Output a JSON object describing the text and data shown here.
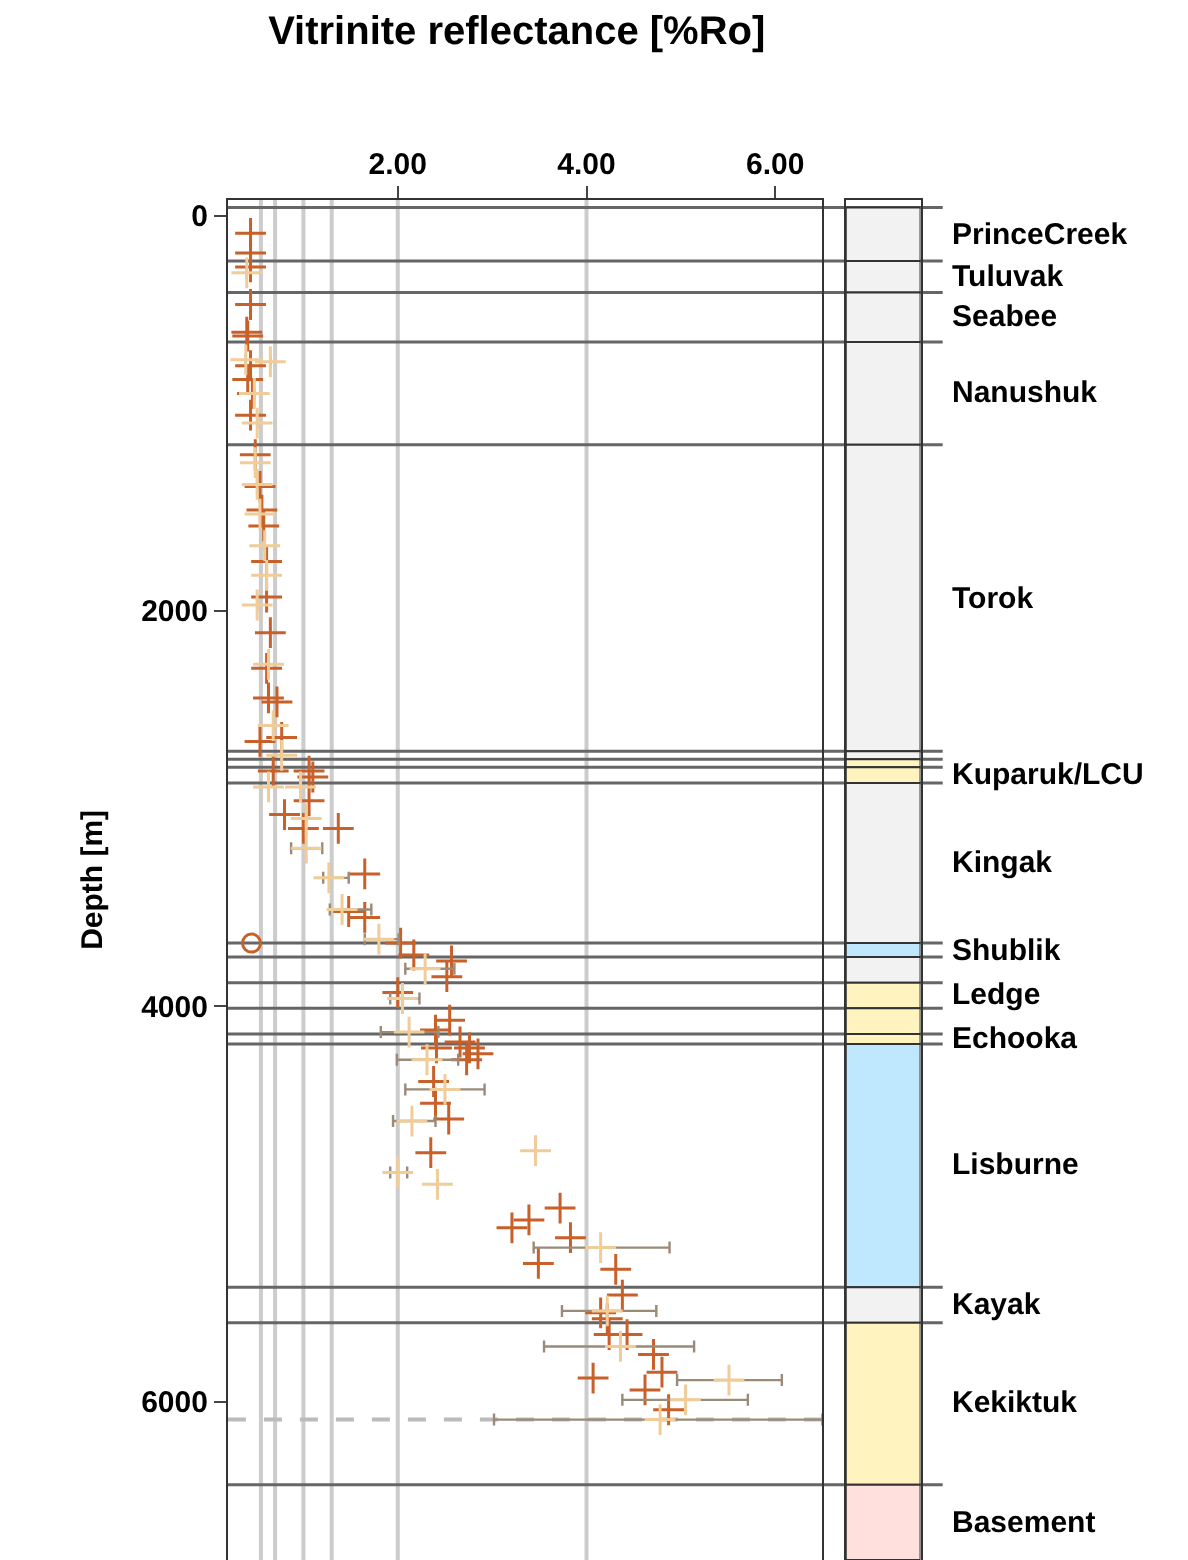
{
  "chart_data": [
    {
      "type": "scatter",
      "title": "Vitrinite reflectance [%Ro]",
      "ylabel": "Depth [m]",
      "xlim": [
        0.2,
        6.5
      ],
      "xticks": [
        {
          "value": 2,
          "label": "2.00"
        },
        {
          "value": 4,
          "label": "4.00"
        },
        {
          "value": 6,
          "label": "6.00"
        }
      ],
      "ylim": [
        6800,
        -80
      ],
      "yticks": [
        0,
        2000,
        4000,
        6000
      ],
      "grid": false,
      "legend": false,
      "marker": "cross",
      "series": [
        {
          "color": "#c8602a",
          "x": [
            0.44,
            0.44,
            0.44,
            0.44,
            0.4,
            0.41,
            0.44,
            0.41,
            0.46,
            0.44,
            0.49,
            0.54,
            0.56,
            0.58,
            0.61,
            0.61,
            0.65,
            0.61,
            0.63,
            0.72,
            0.54,
            0.77,
            0.68,
            1.06,
            1.1,
            1.06,
            0.8,
            1.0,
            1.37,
            1.65,
            1.48,
            1.65,
            2.03,
            2.17,
            2.57,
            2.52,
            2.0,
            2.55,
            2.4,
            2.66,
            2.76,
            2.41,
            2.73,
            2.85,
            2.38,
            2.4,
            2.54,
            2.35,
            3.72,
            3.39,
            3.21,
            3.83,
            3.49,
            4.31,
            4.38,
            4.15,
            4.22,
            4.24,
            4.43,
            4.71,
            4.8,
            4.07,
            4.62,
            4.87
          ],
          "values": [
            90,
            190,
            260,
            450,
            590,
            610,
            760,
            830,
            900,
            1010,
            1210,
            1370,
            1490,
            1570,
            1750,
            1930,
            2110,
            2290,
            2440,
            2460,
            2660,
            2640,
            2810,
            2810,
            2840,
            2960,
            3030,
            3100,
            3100,
            3330,
            3520,
            3550,
            3680,
            3740,
            3770,
            3850,
            3930,
            4070,
            4120,
            4180,
            4210,
            4210,
            4270,
            4240,
            4380,
            4490,
            4570,
            4740,
            5020,
            5080,
            5120,
            5170,
            5300,
            5330,
            5460,
            5550,
            5580,
            5660,
            5660,
            5760,
            5850,
            5880,
            5940,
            6040
          ]
        },
        {
          "color": "#f0cc98",
          "x": [
            0.4,
            0.39,
            0.65,
            0.48,
            0.51,
            0.49,
            0.51,
            0.54,
            0.59,
            0.61,
            0.51,
            0.63,
            0.68,
            0.77,
            0.63,
            0.97,
            1.03,
            1.03,
            1.27,
            1.41,
            1.8,
            2.29,
            2.05,
            2.12,
            2.31,
            2.5,
            2.15,
            3.46,
            2.0,
            2.42,
            4.15,
            4.22,
            4.36,
            5.51,
            5.05,
            4.78
          ],
          "values": [
            290,
            730,
            740,
            900,
            1050,
            1250,
            1360,
            1510,
            1670,
            1820,
            1970,
            2270,
            2580,
            2730,
            2890,
            2890,
            3050,
            3200,
            3350,
            3510,
            3660,
            3810,
            3960,
            4130,
            4270,
            4420,
            4580,
            4730,
            4840,
            4900,
            5220,
            5540,
            5720,
            5890,
            5990,
            6090
          ],
          "xerrors": [
            null,
            null,
            null,
            null,
            null,
            null,
            null,
            null,
            null,
            null,
            null,
            null,
            null,
            null,
            null,
            null,
            null,
            [
              0.87,
              1.2
            ],
            [
              1.21,
              1.48
            ],
            [
              1.28,
              1.72
            ],
            [
              1.65,
              2.01
            ],
            [
              2.08,
              2.6
            ],
            [
              1.92,
              2.23
            ],
            [
              1.82,
              2.43
            ],
            [
              1.99,
              2.64
            ],
            [
              2.08,
              2.92
            ],
            [
              1.95,
              2.4
            ],
            null,
            [
              1.92,
              2.1
            ],
            null,
            [
              3.44,
              4.88
            ],
            [
              3.74,
              4.74
            ],
            [
              3.55,
              5.14
            ],
            [
              4.96,
              6.07
            ],
            [
              4.38,
              5.71
            ],
            [
              3.02,
              6.5
            ]
          ]
        },
        {
          "color": "#c8602a",
          "marker": "circle",
          "x": [
            0.45
          ],
          "values": [
            3680
          ]
        }
      ],
      "ref_lines": [
        {
          "axis": "x",
          "value": 0.55,
          "color": "#cccccc"
        },
        {
          "axis": "x",
          "value": 0.7,
          "color": "#cccccc"
        },
        {
          "axis": "x",
          "value": 1.0,
          "color": "#cccccc"
        },
        {
          "axis": "x",
          "value": 1.3,
          "color": "#cccccc"
        },
        {
          "axis": "x",
          "value": 2.0,
          "color": "#cccccc"
        },
        {
          "axis": "x",
          "value": 4.0,
          "color": "#cccccc"
        },
        {
          "axis": "y",
          "value": 6090,
          "color": "#bbbbbb",
          "line_style": "dashed"
        },
        {
          "axis": "y",
          "value": -40,
          "color": "#666666"
        },
        {
          "axis": "y",
          "value": 230,
          "color": "#666666"
        },
        {
          "axis": "y",
          "value": 390,
          "color": "#666666"
        },
        {
          "axis": "y",
          "value": 640,
          "color": "#666666"
        },
        {
          "axis": "y",
          "value": 1160,
          "color": "#666666"
        },
        {
          "axis": "y",
          "value": 2710,
          "color": "#666666"
        },
        {
          "axis": "y",
          "value": 2750,
          "color": "#666666"
        },
        {
          "axis": "y",
          "value": 2790,
          "color": "#666666"
        },
        {
          "axis": "y",
          "value": 2870,
          "color": "#666666"
        },
        {
          "axis": "y",
          "value": 3680,
          "color": "#666666"
        },
        {
          "axis": "y",
          "value": 3750,
          "color": "#666666"
        },
        {
          "axis": "y",
          "value": 3880,
          "color": "#666666"
        },
        {
          "axis": "y",
          "value": 4010,
          "color": "#666666"
        },
        {
          "axis": "y",
          "value": 4140,
          "color": "#666666"
        },
        {
          "axis": "y",
          "value": 4190,
          "color": "#666666"
        },
        {
          "axis": "y",
          "value": 5420,
          "color": "#666666"
        },
        {
          "axis": "y",
          "value": 5600,
          "color": "#666666"
        },
        {
          "axis": "y",
          "value": 6420,
          "color": "#666666"
        }
      ]
    },
    {
      "type": "bar",
      "categories": [
        null
      ],
      "ylim": [
        6800,
        -80
      ],
      "yticks": [
        0,
        2000,
        4000,
        6000
      ],
      "tick_labels": false,
      "legend": false,
      "series": [
        {
          "name": "PrinceCreek",
          "color": "#f2f2f2",
          "values": [
            270
          ],
          "base": [
            -40
          ]
        },
        {
          "name": "Tuluvak",
          "color": "#f2f2f2",
          "values": [
            160
          ],
          "base": [
            230
          ]
        },
        {
          "name": "Seabee",
          "color": "#f2f2f2",
          "values": [
            250
          ],
          "base": [
            390
          ]
        },
        {
          "name": "Nanushuk",
          "color": "#f2f2f2",
          "values": [
            520
          ],
          "base": [
            640
          ]
        },
        {
          "name": "Torok",
          "color": "#f2f2f2",
          "values": [
            1550
          ],
          "base": [
            1160
          ]
        },
        {
          "color": "#f2f2f2",
          "values": [
            40
          ],
          "base": [
            2710
          ]
        },
        {
          "color": "#fff4c0",
          "values": [
            40
          ],
          "base": [
            2750
          ]
        },
        {
          "name": "Kuparuk/LCU",
          "color": "#fff4c0",
          "values": [
            80
          ],
          "base": [
            2790
          ]
        },
        {
          "name": "Kingak",
          "color": "#f2f2f2",
          "values": [
            810
          ],
          "base": [
            2870
          ]
        },
        {
          "name": "Shublik",
          "color": "#bfe8ff",
          "values": [
            70
          ],
          "base": [
            3680
          ]
        },
        {
          "color": "#f2f2f2",
          "values": [
            130
          ],
          "base": [
            3750
          ]
        },
        {
          "name": "Ledge",
          "color": "#fff4c0",
          "values": [
            130
          ],
          "base": [
            3880
          ]
        },
        {
          "color": "#fff4c0",
          "values": [
            130
          ],
          "base": [
            4010
          ]
        },
        {
          "name": "Echooka",
          "color": "#fff4c0",
          "values": [
            50
          ],
          "base": [
            4140
          ]
        },
        {
          "name": "Lisburne",
          "color": "#bfe8ff",
          "values": [
            1230
          ],
          "base": [
            4190
          ]
        },
        {
          "name": "Kayak",
          "color": "#f2f2f2",
          "values": [
            180
          ],
          "base": [
            5420
          ]
        },
        {
          "name": "Kekiktuk",
          "color": "#fff4c0",
          "values": [
            820
          ],
          "base": [
            5600
          ]
        },
        {
          "name": "Basement",
          "color": "#ffe0dc",
          "values": [
            380
          ],
          "base": [
            6420
          ]
        }
      ]
    }
  ]
}
